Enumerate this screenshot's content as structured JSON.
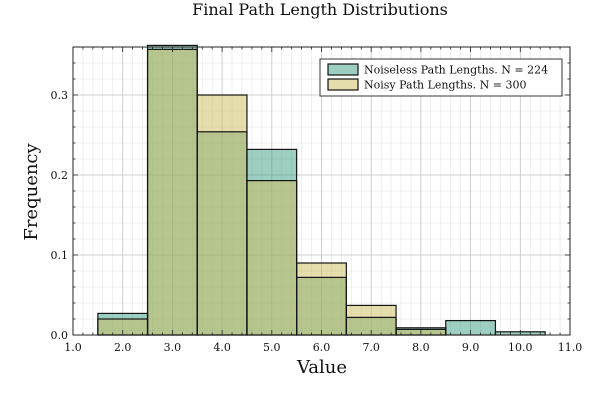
{
  "chart_data": {
    "type": "bar",
    "title": "Final Path Length Distributions",
    "xlabel": "Value",
    "ylabel": "Frequency",
    "xlim": [
      1.0,
      11.0
    ],
    "ylim": [
      0.0,
      0.36
    ],
    "x_ticks": [
      1,
      2,
      3,
      4,
      5,
      6,
      7,
      8,
      9,
      10,
      11
    ],
    "x_tick_labels": [
      "1.0",
      "2.0",
      "3.0",
      "4.0",
      "5.0",
      "6.0",
      "7.0",
      "8.0",
      "9.0",
      "10.0",
      "11.0"
    ],
    "y_ticks": [
      0.0,
      0.1,
      0.2,
      0.3
    ],
    "y_tick_labels": [
      "0.0",
      "0.1",
      "0.2",
      "0.3"
    ],
    "grid": true,
    "legend_position": "top-right",
    "bins": [
      [
        1.5,
        2.5
      ],
      [
        2.5,
        3.5
      ],
      [
        3.5,
        4.5
      ],
      [
        4.5,
        5.5
      ],
      [
        5.5,
        6.5
      ],
      [
        6.5,
        7.5
      ],
      [
        7.5,
        8.5
      ],
      [
        8.5,
        9.5
      ],
      [
        9.5,
        10.5
      ]
    ],
    "series": [
      {
        "name": "Noiseless Path Lengths. N = 224",
        "color": "#3a9e83",
        "values": [
          0.027,
          0.362,
          0.254,
          0.232,
          0.072,
          0.022,
          0.009,
          0.018,
          0.004
        ]
      },
      {
        "name": "Noisy Path Lengths. N = 300",
        "color": "#cdbb5a",
        "values": [
          0.02,
          0.357,
          0.3,
          0.193,
          0.09,
          0.037,
          0.007,
          0.0,
          0.0
        ]
      }
    ]
  }
}
